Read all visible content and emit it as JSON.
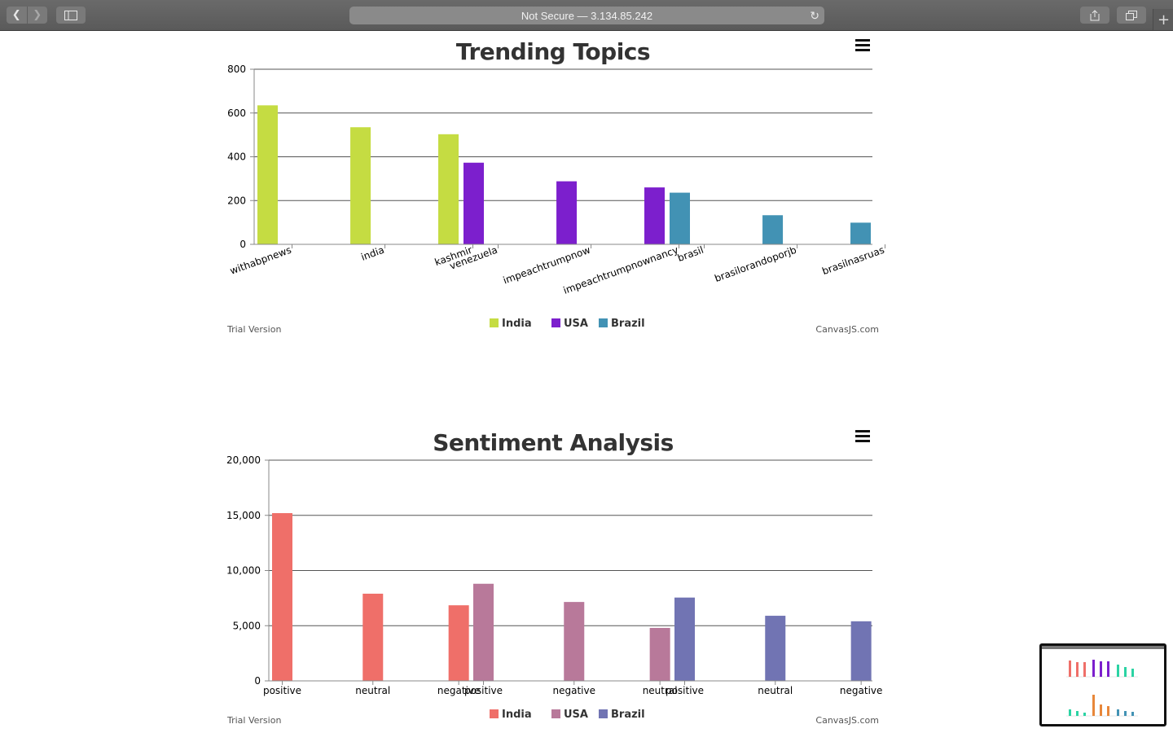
{
  "browser": {
    "address": "Not Secure — 3.134.85.242"
  },
  "footer": {
    "trial": "Trial Version",
    "credit": "CanvasJS.com"
  },
  "chart_data": [
    {
      "type": "bar",
      "title": "Trending Topics",
      "ylim": [
        0,
        800
      ],
      "yticks": [
        0,
        200,
        400,
        600,
        800
      ],
      "grid": true,
      "legend_position": "bottom",
      "categories": [
        "withabpnews",
        "india",
        "kashmir",
        "venezuela",
        "impeachtrumpnow",
        "impeachtrumpnownancy",
        "brasil",
        "brasilorandoporjb",
        "brasilnasruas"
      ],
      "values": [
        635,
        535,
        503,
        373,
        288,
        260,
        236,
        133,
        99
      ],
      "series": [
        {
          "name": "India",
          "color": "#c5dc42",
          "indices": [
            0,
            1,
            2
          ]
        },
        {
          "name": "USA",
          "color": "#7c1fcd",
          "indices": [
            3,
            4,
            5
          ]
        },
        {
          "name": "Brazil",
          "color": "#4292b4",
          "indices": [
            6,
            7,
            8
          ]
        }
      ]
    },
    {
      "type": "bar",
      "title": "Sentiment Analysis",
      "ylim": [
        0,
        20000
      ],
      "yticks": [
        0,
        5000,
        10000,
        15000,
        20000
      ],
      "ytick_labels": [
        "0",
        "5,000",
        "10,000",
        "15,000",
        "20,000"
      ],
      "grid": true,
      "legend_position": "bottom",
      "categories": [
        "positive",
        "neutral",
        "negative",
        "positive",
        "negative",
        "neutral",
        "positive",
        "neutral",
        "negative"
      ],
      "values": [
        15200,
        7900,
        6850,
        8800,
        7150,
        4800,
        7550,
        5900,
        5400
      ],
      "series": [
        {
          "name": "India",
          "color": "#ef6f69",
          "indices": [
            0,
            1,
            2
          ]
        },
        {
          "name": "USA",
          "color": "#b8799a",
          "indices": [
            3,
            4,
            5
          ]
        },
        {
          "name": "Brazil",
          "color": "#7174b3",
          "indices": [
            6,
            7,
            8
          ]
        }
      ]
    }
  ]
}
